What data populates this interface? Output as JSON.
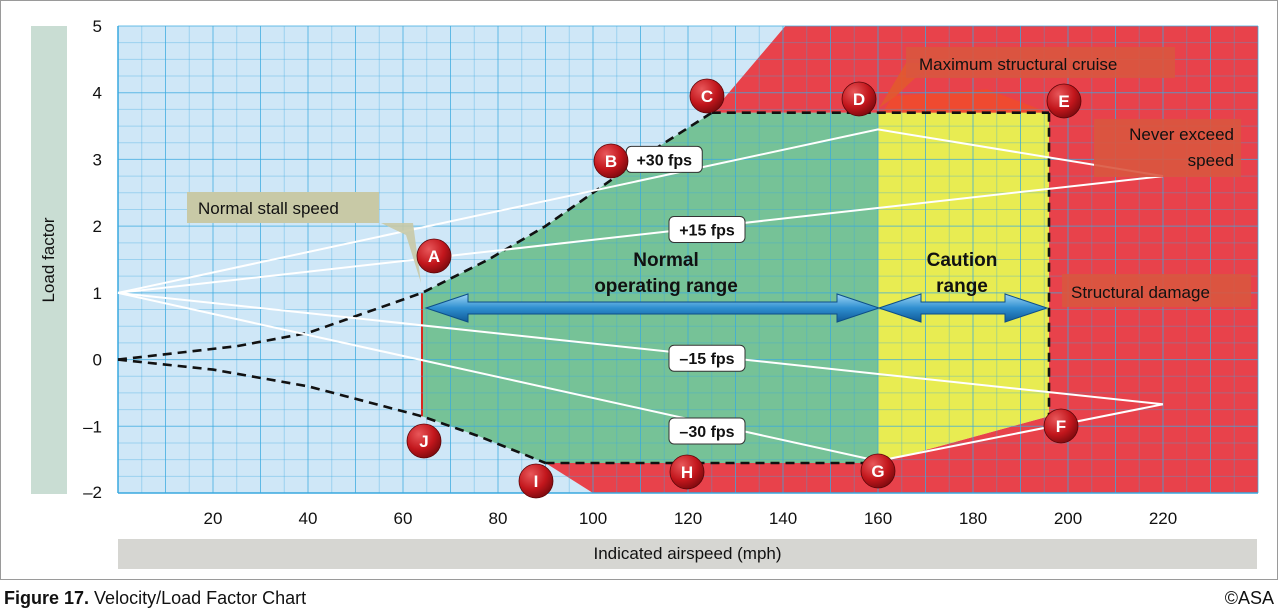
{
  "figure": {
    "label": "Figure 17.",
    "title": "Velocity/Load Factor Chart",
    "credit": "©ASA"
  },
  "colors": {
    "grid_bg": "#cfe7f7",
    "grid_line": "#39a9df",
    "normal": "#6fbf8e",
    "caution": "#e8ec52",
    "damage": "#e8424b",
    "marker": "#c2161c",
    "label_box": "#c8c9a6",
    "damage_box": "#d9573f",
    "arrow": "#2f8fd0"
  },
  "chart_data": {
    "type": "line",
    "title": "Velocity/Load Factor Chart",
    "xlabel": "Indicated airspeed (mph)",
    "ylabel": "Load factor",
    "xlim": [
      0,
      240
    ],
    "ylim": [
      -2,
      5
    ],
    "xticks": [
      20,
      40,
      60,
      80,
      100,
      120,
      140,
      160,
      180,
      200,
      220
    ],
    "yticks": [
      5,
      4,
      3,
      2,
      1,
      0,
      -1,
      -2
    ],
    "ytick_labels": [
      "5",
      "4",
      "3",
      "2",
      "1",
      "0",
      "–1",
      "–2"
    ],
    "series": [
      {
        "name": "Positive stall limit",
        "style": "dashed",
        "points": [
          [
            0,
            0
          ],
          [
            25,
            0.2
          ],
          [
            40,
            0.4
          ],
          [
            64,
            1.0
          ],
          [
            78,
            1.5
          ],
          [
            90,
            2.0
          ],
          [
            102,
            2.6
          ],
          [
            114,
            3.2
          ],
          [
            125,
            3.7
          ]
        ]
      },
      {
        "name": "Negative stall limit",
        "style": "dashed",
        "points": [
          [
            0,
            0
          ],
          [
            20,
            -0.15
          ],
          [
            40,
            -0.4
          ],
          [
            64,
            -0.85
          ],
          [
            76,
            -1.15
          ],
          [
            90,
            -1.55
          ]
        ]
      },
      {
        "name": "Positive limit load",
        "style": "dashed",
        "points": [
          [
            125,
            3.7
          ],
          [
            196,
            3.7
          ]
        ]
      },
      {
        "name": "Negative limit load",
        "style": "dashed",
        "points": [
          [
            90,
            -1.55
          ],
          [
            160,
            -1.55
          ]
        ]
      },
      {
        "name": "Never exceed speed line",
        "style": "dashed",
        "points": [
          [
            196,
            3.7
          ],
          [
            196,
            -0.85
          ]
        ]
      },
      {
        "name": "+30 fps",
        "points": [
          [
            0,
            1
          ],
          [
            160,
            3.45
          ],
          [
            220,
            2.75
          ]
        ]
      },
      {
        "name": "+15 fps",
        "points": [
          [
            0,
            1
          ],
          [
            220,
            2.75
          ]
        ]
      },
      {
        "name": "−15 fps",
        "points": [
          [
            0,
            1
          ],
          [
            220,
            -0.67
          ]
        ]
      },
      {
        "name": "−30 fps",
        "points": [
          [
            0,
            1
          ],
          [
            160,
            -1.52
          ],
          [
            220,
            -0.67
          ]
        ]
      }
    ],
    "regions": [
      {
        "name": "Normal operating range",
        "x_range": [
          64,
          160
        ]
      },
      {
        "name": "Caution range",
        "x_range": [
          160,
          196
        ]
      },
      {
        "name": "Structural damage",
        "x_range": [
          196,
          240
        ]
      }
    ],
    "points": [
      {
        "id": "A",
        "x": 64,
        "y": 1.0
      },
      {
        "id": "B",
        "x": 102,
        "y": 2.6
      },
      {
        "id": "C",
        "x": 125,
        "y": 3.7
      },
      {
        "id": "D",
        "x": 160,
        "y": 3.7
      },
      {
        "id": "E",
        "x": 196,
        "y": 3.7
      },
      {
        "id": "F",
        "x": 196,
        "y": -0.85
      },
      {
        "id": "G",
        "x": 160,
        "y": -1.55
      },
      {
        "id": "H",
        "x": 125,
        "y": -1.55
      },
      {
        "id": "I",
        "x": 90,
        "y": -1.55
      },
      {
        "id": "J",
        "x": 64,
        "y": -0.85
      }
    ],
    "gust_labels": [
      {
        "text": "+30 fps",
        "x": 115,
        "y": 3.0
      },
      {
        "text": "+15 fps",
        "x": 124,
        "y": 1.95
      },
      {
        "text": "–15 fps",
        "x": 124,
        "y": 0.02
      },
      {
        "text": "–30 fps",
        "x": 124,
        "y": -1.07
      }
    ],
    "annotations": [
      {
        "text": "Normal stall speed"
      },
      {
        "text": "Maximum structural cruise"
      },
      {
        "text": "Never exceed speed",
        "lines": [
          "Never exceed",
          "speed"
        ]
      },
      {
        "text": "Normal operating range",
        "lines": [
          "Normal",
          "operating range"
        ]
      },
      {
        "text": "Caution range",
        "lines": [
          "Caution",
          "range"
        ]
      },
      {
        "text": "Structural damage"
      }
    ]
  }
}
